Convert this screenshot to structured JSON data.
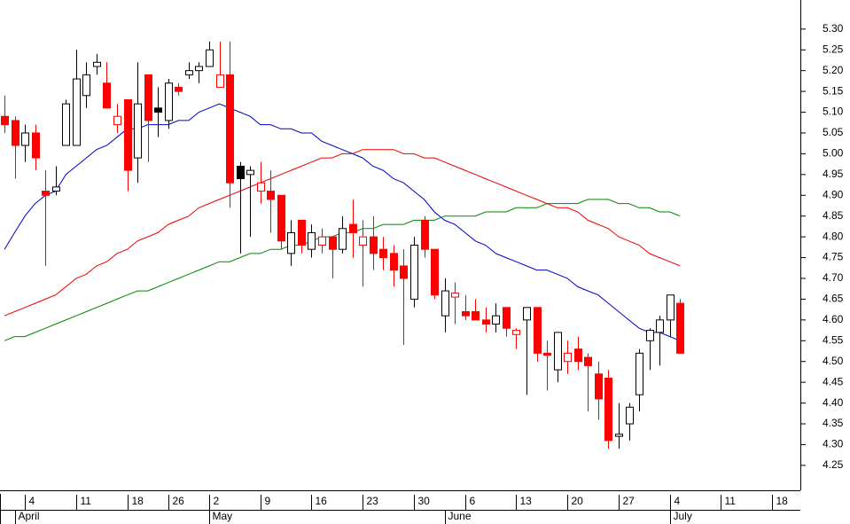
{
  "chart_data": {
    "type": "candlestick",
    "open": [
      5.09,
      5.08,
      5.02,
      5.05,
      4.91,
      4.91,
      5.02,
      5.02,
      5.14,
      5.21,
      5.17,
      5.07,
      5.13,
      4.99,
      5.19,
      5.11,
      5.08,
      5.16,
      5.19,
      5.2,
      5.21,
      5.16,
      5.19,
      4.97,
      4.95,
      4.91,
      4.91,
      4.9,
      4.76,
      4.84,
      4.77,
      4.78,
      4.8,
      4.77,
      4.83,
      4.78,
      4.8,
      4.77,
      4.76,
      4.73,
      4.65,
      4.84,
      4.77,
      4.61,
      4.655,
      4.62,
      4.62,
      4.6,
      4.59,
      4.63,
      4.565,
      4.6,
      4.63,
      4.52,
      4.48,
      4.5,
      4.53,
      4.51,
      4.47,
      4.46,
      4.32,
      4.35,
      4.42,
      4.55,
      4.57,
      4.6,
      4.64
    ],
    "high": [
      5.14,
      5.09,
      5.07,
      5.07,
      4.96,
      4.97,
      5.13,
      5.25,
      5.22,
      5.24,
      5.22,
      5.12,
      5.13,
      5.22,
      5.19,
      5.16,
      5.18,
      5.17,
      5.22,
      5.22,
      5.27,
      5.27,
      5.27,
      4.98,
      4.97,
      4.98,
      4.96,
      4.9,
      4.84,
      4.84,
      4.83,
      4.82,
      4.8,
      4.85,
      4.89,
      4.84,
      4.85,
      4.8,
      4.78,
      4.77,
      4.8,
      4.85,
      4.77,
      4.7,
      4.69,
      4.66,
      4.65,
      4.63,
      4.64,
      4.63,
      4.58,
      4.63,
      4.63,
      4.55,
      4.57,
      4.55,
      4.56,
      4.52,
      4.5,
      4.48,
      4.4,
      4.4,
      4.53,
      4.58,
      4.61,
      4.66,
      4.65
    ],
    "low": [
      5.05,
      4.94,
      4.98,
      4.96,
      4.73,
      4.9,
      5.02,
      5.02,
      5.11,
      5.19,
      5.11,
      5.05,
      4.91,
      4.93,
      4.98,
      5.04,
      5.06,
      5.14,
      5.18,
      5.17,
      5.22,
      5.16,
      4.87,
      4.76,
      4.8,
      4.88,
      4.81,
      4.77,
      4.73,
      4.76,
      4.75,
      4.76,
      4.7,
      4.76,
      4.75,
      4.68,
      4.72,
      4.72,
      4.68,
      4.54,
      4.63,
      4.75,
      4.65,
      4.57,
      4.59,
      4.6,
      4.6,
      4.57,
      4.57,
      4.56,
      4.53,
      4.42,
      4.5,
      4.43,
      4.45,
      4.47,
      4.48,
      4.38,
      4.36,
      4.29,
      4.29,
      4.31,
      4.38,
      4.48,
      4.49,
      4.56,
      4.52
    ],
    "close": [
      5.07,
      5.02,
      5.05,
      4.99,
      4.9,
      4.92,
      5.12,
      5.18,
      5.19,
      5.22,
      5.11,
      5.09,
      4.96,
      5.12,
      5.08,
      5.1,
      5.17,
      5.15,
      5.2,
      5.21,
      5.25,
      5.19,
      4.93,
      4.94,
      4.96,
      4.93,
      4.89,
      4.79,
      4.81,
      4.78,
      4.81,
      4.8,
      4.77,
      4.82,
      4.81,
      4.8,
      4.76,
      4.75,
      4.72,
      4.7,
      4.78,
      4.77,
      4.66,
      4.67,
      4.665,
      4.61,
      4.6,
      4.59,
      4.61,
      4.58,
      4.575,
      4.63,
      4.52,
      4.515,
      4.57,
      4.52,
      4.5,
      4.49,
      4.41,
      4.31,
      4.325,
      4.39,
      4.52,
      4.575,
      4.6,
      4.66,
      4.52
    ],
    "up_color": "#000000",
    "down_color": "#ff0000",
    "series": [
      {
        "color": "#0000cc",
        "values": [
          4.77,
          4.81,
          4.85,
          4.88,
          4.9,
          4.91,
          4.95,
          4.97,
          4.99,
          5.01,
          5.02,
          5.04,
          5.06,
          5.06,
          5.07,
          5.07,
          5.07,
          5.08,
          5.08,
          5.1,
          5.11,
          5.12,
          5.11,
          5.1,
          5.09,
          5.07,
          5.07,
          5.06,
          5.06,
          5.05,
          5.05,
          5.03,
          5.02,
          5.01,
          5.0,
          4.99,
          4.97,
          4.96,
          4.94,
          4.93,
          4.91,
          4.89,
          4.86,
          4.84,
          4.83,
          4.81,
          4.79,
          4.78,
          4.76,
          4.75,
          4.74,
          4.73,
          4.72,
          4.72,
          4.71,
          4.7,
          4.68,
          4.67,
          4.66,
          4.64,
          4.62,
          4.6,
          4.58,
          4.57,
          4.57,
          4.56,
          4.55
        ]
      },
      {
        "color": "#ee0000",
        "values": [
          4.61,
          4.62,
          4.63,
          4.64,
          4.65,
          4.66,
          4.68,
          4.7,
          4.71,
          4.73,
          4.74,
          4.76,
          4.77,
          4.79,
          4.8,
          4.81,
          4.83,
          4.84,
          4.85,
          4.87,
          4.88,
          4.89,
          4.9,
          4.91,
          4.92,
          4.93,
          4.94,
          4.95,
          4.96,
          4.97,
          4.98,
          4.99,
          4.99,
          5.0,
          5.0,
          5.01,
          5.01,
          5.01,
          5.01,
          5.0,
          5.0,
          4.99,
          4.99,
          4.98,
          4.97,
          4.96,
          4.95,
          4.94,
          4.93,
          4.92,
          4.91,
          4.9,
          4.89,
          4.88,
          4.87,
          4.87,
          4.86,
          4.84,
          4.83,
          4.82,
          4.8,
          4.79,
          4.78,
          4.76,
          4.75,
          4.74,
          4.73
        ]
      },
      {
        "color": "#008800",
        "values": [
          4.55,
          4.56,
          4.56,
          4.57,
          4.58,
          4.59,
          4.6,
          4.61,
          4.62,
          4.63,
          4.64,
          4.65,
          4.66,
          4.67,
          4.67,
          4.68,
          4.69,
          4.7,
          4.71,
          4.72,
          4.73,
          4.74,
          4.74,
          4.75,
          4.76,
          4.76,
          4.77,
          4.77,
          4.78,
          4.78,
          4.79,
          4.8,
          4.8,
          4.81,
          4.81,
          4.82,
          4.82,
          4.83,
          4.83,
          4.83,
          4.84,
          4.84,
          4.84,
          4.85,
          4.85,
          4.85,
          4.85,
          4.86,
          4.86,
          4.86,
          4.87,
          4.87,
          4.87,
          4.88,
          4.88,
          4.88,
          4.88,
          4.89,
          4.89,
          4.89,
          4.88,
          4.88,
          4.87,
          4.87,
          4.86,
          4.86,
          4.85
        ]
      }
    ],
    "ylim": [
      4.19,
      5.37
    ],
    "yticks": [
      4.25,
      {
        "value": 4.3,
        "label": "4.30"
      },
      4.35,
      {
        "value": 4.4,
        "label": "4.40"
      },
      4.45,
      {
        "value": 4.5,
        "label": "4.50"
      },
      4.55,
      {
        "value": 4.6,
        "label": "4.60"
      },
      4.65,
      {
        "value": 4.7,
        "label": "4.70"
      },
      4.75,
      {
        "value": 4.8,
        "label": "4.80"
      },
      4.85,
      {
        "value": 4.9,
        "label": "4.90"
      },
      4.95,
      {
        "value": 5.0,
        "label": "5.00"
      },
      5.05,
      {
        "value": 5.1,
        "label": "5.10"
      },
      5.15,
      {
        "value": 5.2,
        "label": "5.20"
      },
      5.25,
      {
        "value": 5.3,
        "label": "5.30"
      }
    ],
    "xlim": [
      -0.43,
      77.75
    ],
    "xticks": [
      {
        "value": 2,
        "label": "4"
      },
      {
        "value": 7,
        "label": "11"
      },
      {
        "value": 12,
        "label": "18"
      },
      {
        "value": 16,
        "label": "26"
      },
      {
        "value": 20,
        "label": "2"
      },
      {
        "value": 25,
        "label": "9"
      },
      {
        "value": 30,
        "label": "16"
      },
      {
        "value": 35,
        "label": "23"
      },
      {
        "value": 40,
        "label": "30"
      },
      {
        "value": 45,
        "label": "6"
      },
      {
        "value": 50,
        "label": "13"
      },
      {
        "value": 55,
        "label": "20"
      },
      {
        "value": 60,
        "label": "27"
      },
      {
        "value": 65,
        "label": "4"
      },
      {
        "value": 70,
        "label": "11"
      },
      {
        "value": 75,
        "label": "18"
      }
    ],
    "month_ticks": [
      {
        "value": 1,
        "label": "April"
      },
      {
        "value": 20,
        "label": "May"
      },
      {
        "value": 43,
        "label": "June"
      },
      {
        "value": 65,
        "label": "July"
      }
    ]
  }
}
